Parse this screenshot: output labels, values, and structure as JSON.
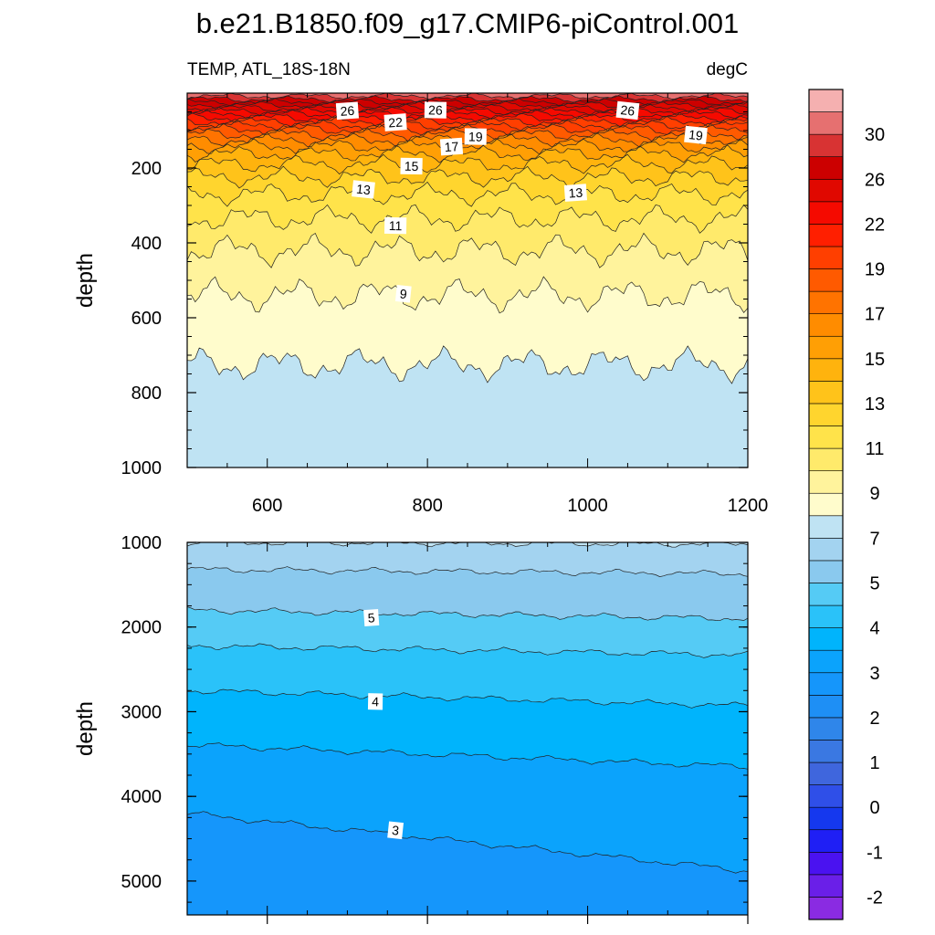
{
  "chart_data": [
    {
      "type": "filled-contour",
      "title": "b.e21.B1850.f09_g17.CMIP6-piControl.001",
      "variable_label": "TEMP, ATL_18S-18N",
      "units_label": "degC",
      "ylabel": "depth",
      "xlim": [
        500,
        1200
      ],
      "ylim": [
        0,
        1000
      ],
      "y_reversed": true,
      "x_ticks": [
        "600",
        "800",
        "1000",
        "1200"
      ],
      "y_ticks": [
        "200",
        "400",
        "600",
        "800",
        "1000"
      ],
      "isotherms": [
        {
          "level": 29,
          "depth": 8
        },
        {
          "level": 28,
          "depth": 16
        },
        {
          "level": 27,
          "depth": 24
        },
        {
          "level": 26,
          "depth": 32
        },
        {
          "level": 25,
          "depth": 40
        },
        {
          "level": 24,
          "depth": 48
        },
        {
          "level": 23,
          "depth": 56
        },
        {
          "level": 22,
          "depth": 66
        },
        {
          "level": 21,
          "depth": 76
        },
        {
          "level": 20,
          "depth": 86
        },
        {
          "level": 19,
          "depth": 97
        },
        {
          "level": 18,
          "depth": 110
        },
        {
          "level": 17,
          "depth": 125
        },
        {
          "level": 16,
          "depth": 142
        },
        {
          "level": 15,
          "depth": 162
        },
        {
          "level": 14,
          "depth": 190
        },
        {
          "level": 13,
          "depth": 225
        },
        {
          "level": 12,
          "depth": 270
        },
        {
          "level": 11,
          "depth": 335
        },
        {
          "level": 10,
          "depth": 420
        },
        {
          "level": 9,
          "depth": 540
        },
        {
          "level": 8,
          "depth": 725
        }
      ],
      "contour_labels": [
        {
          "text": "26",
          "x": 700,
          "depth": 47
        },
        {
          "text": "26",
          "x": 810,
          "depth": 45
        },
        {
          "text": "26",
          "x": 1050,
          "depth": 46
        },
        {
          "text": "22",
          "x": 760,
          "depth": 78
        },
        {
          "text": "19",
          "x": 860,
          "depth": 116
        },
        {
          "text": "19",
          "x": 1135,
          "depth": 112
        },
        {
          "text": "17",
          "x": 830,
          "depth": 143
        },
        {
          "text": "15",
          "x": 780,
          "depth": 195
        },
        {
          "text": "13",
          "x": 720,
          "depth": 257
        },
        {
          "text": "13",
          "x": 985,
          "depth": 266
        },
        {
          "text": "11",
          "x": 760,
          "depth": 354
        },
        {
          "text": "9",
          "x": 770,
          "depth": 536
        }
      ]
    },
    {
      "type": "filled-contour",
      "ylabel": "depth",
      "xlim": [
        500,
        1200
      ],
      "ylim": [
        1000,
        5400
      ],
      "y_reversed": true,
      "y_ticks": [
        "1000",
        "2000",
        "3000",
        "4000",
        "5000"
      ],
      "isotherms": [
        {
          "level": 7,
          "depth0": 1000,
          "depth1": 1020
        },
        {
          "level": 6,
          "depth0": 1320,
          "depth1": 1370
        },
        {
          "level": 5,
          "depth0": 1800,
          "depth1": 1900
        },
        {
          "level": 4.5,
          "depth0": 2220,
          "depth1": 2330
        },
        {
          "level": 4,
          "depth0": 2750,
          "depth1": 2930
        },
        {
          "level": 3.5,
          "depth0": 3390,
          "depth1": 3650
        },
        {
          "level": 3,
          "depth0": 4200,
          "depth1": 4880
        }
      ],
      "contour_labels": [
        {
          "text": "5",
          "x": 730,
          "depth": 1890
        },
        {
          "text": "4",
          "x": 735,
          "depth": 2880
        },
        {
          "text": "3",
          "x": 760,
          "depth": 4400
        }
      ]
    }
  ],
  "colorbar": {
    "colors": [
      "#8a2be2",
      "#6a1fe8",
      "#4a12f0",
      "#1f1ff5",
      "#1538ee",
      "#2f4fe8",
      "#3f66dd",
      "#3a78e2",
      "#2f86ea",
      "#1e8ff5",
      "#1596fb",
      "#0ba3fc",
      "#00b4fc",
      "#2ac2f9",
      "#55cbf5",
      "#8ac9ee",
      "#a3d3f0",
      "#bfe3f3",
      "#fffccc",
      "#fff39c",
      "#ffea6b",
      "#ffe34a",
      "#ffd52e",
      "#ffc31a",
      "#ffb30d",
      "#ff9f05",
      "#ff8c00",
      "#ff7300",
      "#ff5a00",
      "#ff3f00",
      "#ff1f00",
      "#f50a00",
      "#e00800",
      "#cc0000",
      "#d83333",
      "#e67070",
      "#f5b0b0"
    ],
    "labels": [
      {
        "text": "-2",
        "boundary": 1
      },
      {
        "text": "-1",
        "boundary": 3
      },
      {
        "text": "0",
        "boundary": 5
      },
      {
        "text": "1",
        "boundary": 7
      },
      {
        "text": "2",
        "boundary": 9
      },
      {
        "text": "3",
        "boundary": 11
      },
      {
        "text": "4",
        "boundary": 13
      },
      {
        "text": "5",
        "boundary": 15
      },
      {
        "text": "7",
        "boundary": 17
      },
      {
        "text": "9",
        "boundary": 19
      },
      {
        "text": "11",
        "boundary": 21
      },
      {
        "text": "13",
        "boundary": 23
      },
      {
        "text": "15",
        "boundary": 25
      },
      {
        "text": "17",
        "boundary": 27
      },
      {
        "text": "19",
        "boundary": 29
      },
      {
        "text": "22",
        "boundary": 31
      },
      {
        "text": "26",
        "boundary": 33
      },
      {
        "text": "30",
        "boundary": 35
      }
    ]
  }
}
